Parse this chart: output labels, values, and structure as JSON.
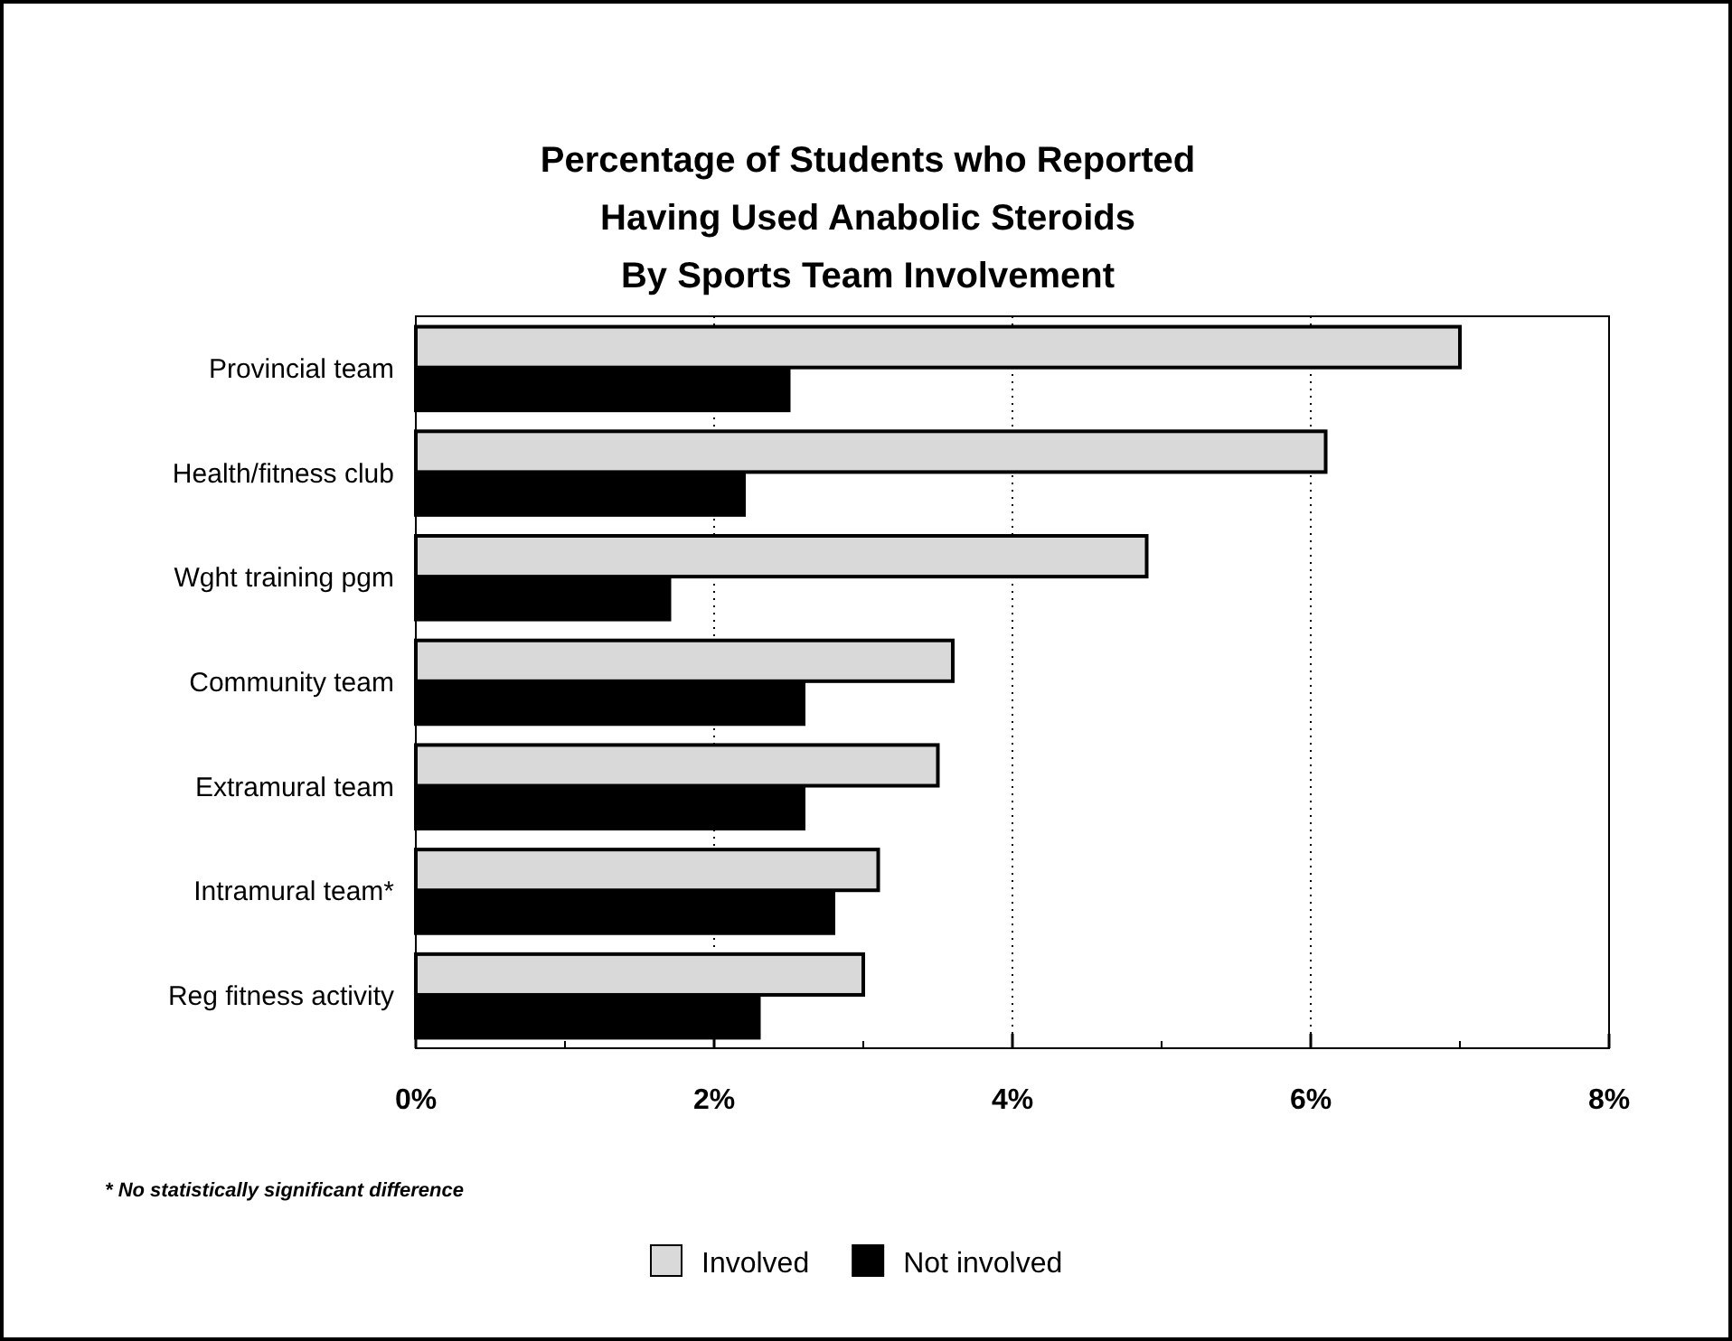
{
  "chart_data": {
    "type": "bar",
    "orientation": "horizontal",
    "title": "Percentage of Students who Reported\nHaving Used Anabolic Steroids\nBy Sports Team Involvement",
    "categories": [
      "Provincial team",
      "Health/fitness club",
      "Wght training pgm",
      "Community team",
      "Extramural team",
      "Intramural team*",
      "Reg fitness activity"
    ],
    "series": [
      {
        "name": "Involved",
        "color": "#d9d9d9",
        "values": [
          7.0,
          6.1,
          4.9,
          3.6,
          3.5,
          3.1,
          3.0
        ]
      },
      {
        "name": "Not involved",
        "color": "#000000",
        "values": [
          2.5,
          2.2,
          1.7,
          2.6,
          2.6,
          2.8,
          2.3
        ]
      }
    ],
    "xlim": [
      0,
      8
    ],
    "xticks": [
      {
        "value": 0,
        "label": "0%"
      },
      {
        "value": 1,
        "label": null
      },
      {
        "value": 2,
        "label": "2%"
      },
      {
        "value": 3,
        "label": null
      },
      {
        "value": 4,
        "label": "4%"
      },
      {
        "value": 5,
        "label": null
      },
      {
        "value": 6,
        "label": "6%"
      },
      {
        "value": 7,
        "label": null
      },
      {
        "value": 8,
        "label": "8%"
      }
    ],
    "grid": "x",
    "legend": "bottom",
    "annotations": [
      "* No statistically significant difference"
    ]
  }
}
